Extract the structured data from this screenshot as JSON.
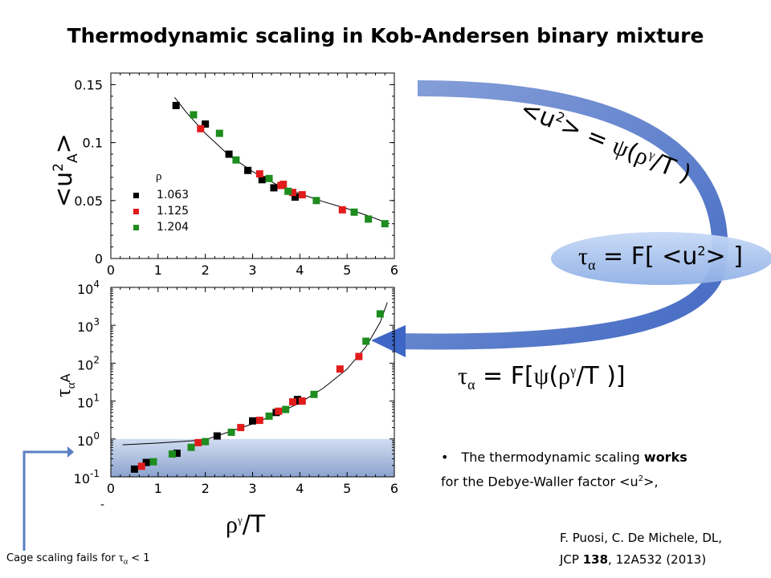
{
  "title": "Thermodynamic scaling in Kob-Andersen binary mixture",
  "chart_data": [
    {
      "type": "scatter",
      "panel": "top",
      "ylabel_parts": {
        "open": "<u",
        "sup": "2",
        "sub": "A",
        "close": ">"
      },
      "xlim": [
        0,
        6
      ],
      "ylim": [
        0,
        0.16
      ],
      "x_ticks": [
        "0",
        "1",
        "2",
        "3",
        "4",
        "5",
        "6"
      ],
      "y_ticks": [
        "0",
        "0.05",
        "0.1",
        "0.15"
      ],
      "legend_title": "ρ",
      "series": [
        {
          "name": "1.063",
          "color": "#000000",
          "points": [
            [
              1.38,
              0.132
            ],
            [
              2.0,
              0.116
            ],
            [
              2.5,
              0.09
            ],
            [
              2.9,
              0.076
            ],
            [
              3.2,
              0.068
            ],
            [
              3.45,
              0.061
            ],
            [
              3.9,
              0.053
            ]
          ]
        },
        {
          "name": "1.125",
          "color": "#e21b1b",
          "points": [
            [
              1.9,
              0.112
            ],
            [
              3.15,
              0.073
            ],
            [
              3.6,
              0.063
            ],
            [
              3.65,
              0.064
            ],
            [
              3.85,
              0.057
            ],
            [
              4.05,
              0.055
            ],
            [
              4.9,
              0.042
            ]
          ]
        },
        {
          "name": "1.204",
          "color": "#1e8c1e",
          "points": [
            [
              1.75,
              0.124
            ],
            [
              2.3,
              0.108
            ],
            [
              2.65,
              0.085
            ],
            [
              3.35,
              0.069
            ],
            [
              3.75,
              0.058
            ],
            [
              4.35,
              0.05
            ],
            [
              5.15,
              0.04
            ],
            [
              5.45,
              0.034
            ],
            [
              5.8,
              0.03
            ]
          ]
        }
      ],
      "fit": [
        [
          1.35,
          0.139
        ],
        [
          1.6,
          0.126
        ],
        [
          2.0,
          0.108
        ],
        [
          2.5,
          0.089
        ],
        [
          3.0,
          0.075
        ],
        [
          3.5,
          0.064
        ],
        [
          4.0,
          0.056
        ],
        [
          4.5,
          0.049
        ],
        [
          5.0,
          0.043
        ],
        [
          5.5,
          0.036
        ],
        [
          5.9,
          0.03
        ]
      ]
    },
    {
      "type": "scatter",
      "panel": "bottom",
      "scale": "log-y",
      "xlabel_parts": {
        "rho": "ρ",
        "gamma": "γ",
        "rest": "/T"
      },
      "ylabel_parts": {
        "tau": "τ",
        "alpha": "α",
        "A": "A"
      },
      "xlim": [
        0,
        6
      ],
      "ylim": [
        0.1,
        10000
      ],
      "x_ticks": [
        "0",
        "1",
        "2",
        "3",
        "4",
        "5",
        "6"
      ],
      "y_ticks": [
        {
          "base": "10",
          "exp": "4"
        },
        {
          "base": "10",
          "exp": "3"
        },
        {
          "base": "10",
          "exp": "2"
        },
        {
          "base": "10",
          "exp": "1"
        },
        {
          "base": "10",
          "exp": "0"
        },
        {
          "base": "10",
          "exp": "-1"
        }
      ],
      "series": [
        {
          "name": "1.063",
          "color": "#000000",
          "points": [
            [
              0.5,
              0.16
            ],
            [
              0.75,
              0.24
            ],
            [
              1.4,
              0.42
            ],
            [
              2.25,
              1.2
            ],
            [
              3.0,
              3.0
            ],
            [
              3.5,
              5.0
            ],
            [
              3.95,
              11.0
            ],
            [
              4.0,
              10.0
            ]
          ]
        },
        {
          "name": "1.125",
          "color": "#e21b1b",
          "points": [
            [
              0.65,
              0.19
            ],
            [
              1.85,
              0.8
            ],
            [
              2.75,
              2.0
            ],
            [
              3.15,
              3.1
            ],
            [
              3.55,
              5.4
            ],
            [
              3.85,
              9.5
            ],
            [
              4.05,
              10.0
            ],
            [
              4.85,
              70.0
            ],
            [
              5.25,
              150.0
            ]
          ]
        },
        {
          "name": "1.204",
          "color": "#1e8c1e",
          "points": [
            [
              0.9,
              0.25
            ],
            [
              1.3,
              0.4
            ],
            [
              1.7,
              0.6
            ],
            [
              2.0,
              0.85
            ],
            [
              2.55,
              1.5
            ],
            [
              3.35,
              4.0
            ],
            [
              3.7,
              6.0
            ],
            [
              4.3,
              15.0
            ],
            [
              5.4,
              380.0
            ],
            [
              5.7,
              2000.0
            ]
          ]
        }
      ],
      "fit": [
        [
          0.25,
          0.7
        ],
        [
          1.0,
          0.78
        ],
        [
          2.0,
          0.95
        ],
        [
          3.0,
          2.5
        ],
        [
          3.5,
          4.5
        ],
        [
          4.0,
          9.0
        ],
        [
          4.5,
          22.0
        ],
        [
          5.0,
          70.0
        ],
        [
          5.4,
          270.0
        ],
        [
          5.7,
          1200.0
        ],
        [
          5.85,
          4000.0
        ]
      ]
    }
  ],
  "annotations": {
    "eq_top": {
      "open": "<u",
      "sup": "2",
      "mid": "> = ",
      "psi": "ψ",
      "paren": "(",
      "rho": "ρ",
      "gamma": "γ",
      "rest": "/T )"
    },
    "eq_middle": {
      "tau": "τ",
      "alpha": "α",
      "rest": " = F[ <u",
      "sup": "2",
      "close": "> ]"
    },
    "eq_bottom": {
      "tau": "τ",
      "alpha": "α",
      "rest1": " = F[",
      "psi": "ψ",
      "paren": "(",
      "rho": "ρ",
      "gamma": "γ",
      "rest2": "/T )]"
    },
    "bullet": {
      "marker": "•",
      "line1_a": "The thermodynamic scaling ",
      "line1_b": "works",
      "line2": "for the Debye-Waller factor <u",
      "sup": "2",
      "line2_end": ">,"
    },
    "citation": {
      "line1": "F. Puosi, C. De Michele, DL,",
      "journal": "JCP ",
      "volume": "138",
      "rest": ", 12A532 (2013)"
    },
    "cage": {
      "text": "Cage scaling fails for ",
      "tau": "τ",
      "alpha": "α",
      "end": " < 1"
    },
    "minus": "-"
  },
  "colors": {
    "arrow": "#4a72c4",
    "ellipse": "#a9c3ef",
    "highlight": "#8fa9d6"
  }
}
